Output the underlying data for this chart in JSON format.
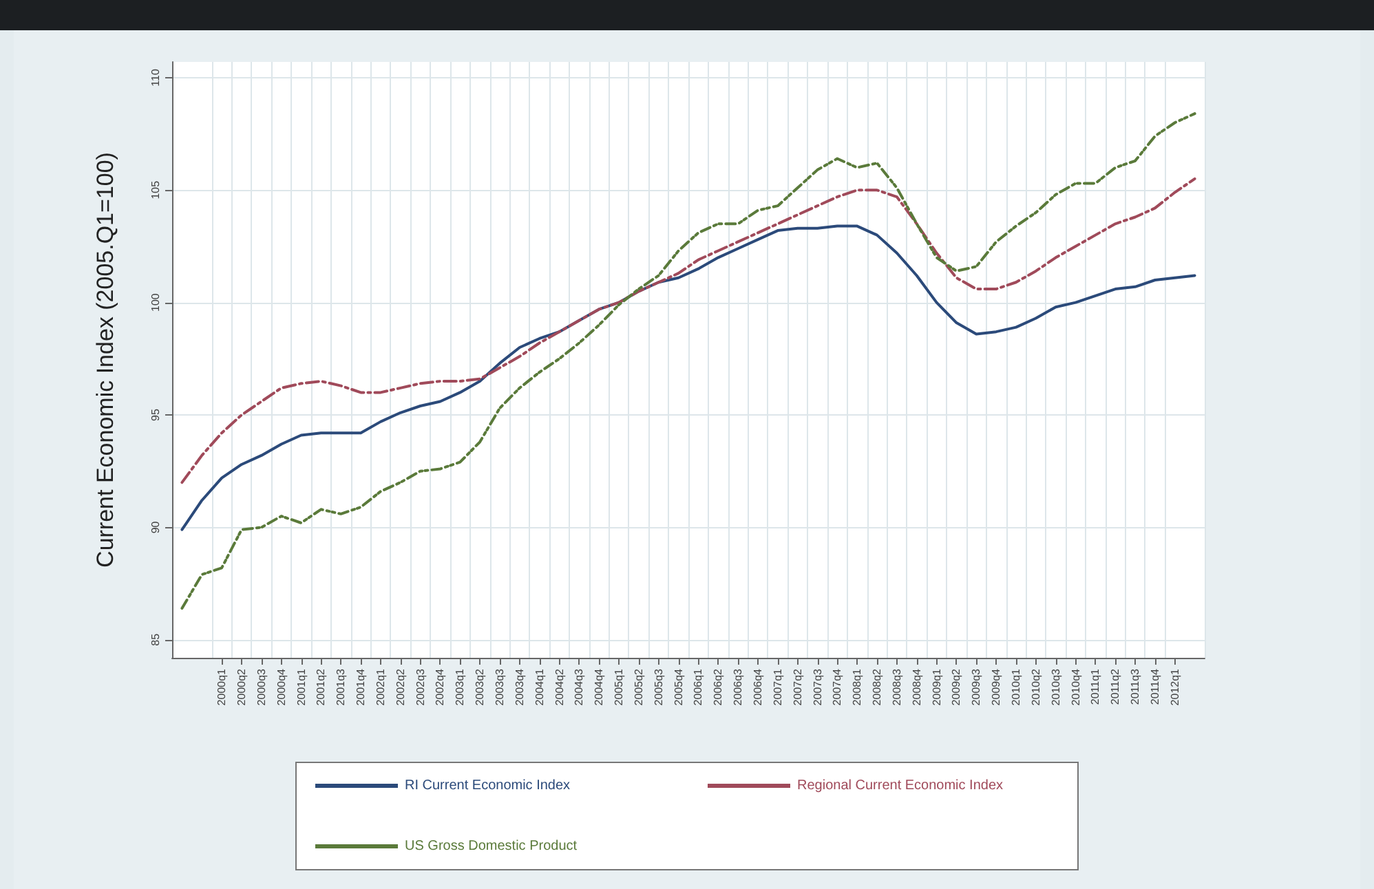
{
  "chart_data": {
    "type": "line",
    "ylabel": "Current Economic Index (2005.Q1=100)",
    "categories": [
      null,
      null,
      "2000q1",
      "2000q2",
      "2000q3",
      "2000q4",
      "2001q1",
      "2001q2",
      "2001q3",
      "2001q4",
      "2002q1",
      "2002q2",
      "2002q3",
      "2002q4",
      "2003q1",
      "2003q2",
      "2003q3",
      "2003q4",
      "2004q1",
      "2004q2",
      "2004q3",
      "2004q4",
      "2005q1",
      "2005q2",
      "2005q3",
      "2005q4",
      "2006q1",
      "2006q2",
      "2006q3",
      "2006q4",
      "2007q1",
      "2007q2",
      "2007q3",
      "2007q4",
      "2008q1",
      "2008q2",
      "2008q3",
      "2008q4",
      "2009q1",
      "2009q2",
      "2009q3",
      "2009q4",
      "2010q1",
      "2010q2",
      "2010q3",
      "2010q4",
      "2011q1",
      "2011q2",
      "2011q3",
      "2011q4",
      "2012q1",
      null
    ],
    "series": [
      {
        "name": "RI Current Economic Index",
        "color": "#2b4a7a",
        "line_style": "solid",
        "values": [
          89.9,
          91.2,
          92.2,
          92.8,
          93.2,
          93.7,
          94.1,
          94.2,
          94.2,
          94.2,
          94.7,
          95.1,
          95.4,
          95.6,
          96.0,
          96.5,
          97.3,
          98.0,
          98.4,
          98.7,
          99.2,
          99.7,
          100.0,
          100.5,
          100.9,
          101.1,
          101.5,
          102.0,
          102.4,
          102.8,
          103.2,
          103.3,
          103.3,
          103.4,
          103.4,
          103.0,
          102.2,
          101.2,
          100.0,
          99.1,
          98.6,
          98.7,
          98.9,
          99.3,
          99.8,
          100.0,
          100.3,
          100.6,
          100.7,
          101.0,
          101.1,
          101.2
        ]
      },
      {
        "name": "Regional Current Economic Index",
        "color": "#a04a5a",
        "line_style": "dashed",
        "values": [
          92.0,
          93.2,
          94.2,
          95.0,
          95.6,
          96.2,
          96.4,
          96.5,
          96.3,
          96.0,
          96.0,
          96.2,
          96.4,
          96.5,
          96.5,
          96.6,
          97.1,
          97.6,
          98.2,
          98.7,
          99.2,
          99.7,
          100.0,
          100.5,
          100.9,
          101.3,
          101.9,
          102.3,
          102.7,
          103.1,
          103.5,
          103.9,
          104.3,
          104.7,
          105.0,
          105.0,
          104.7,
          103.5,
          102.2,
          101.1,
          100.6,
          100.6,
          100.9,
          101.4,
          102.0,
          102.5,
          103.0,
          103.5,
          103.8,
          104.2,
          104.9,
          105.5
        ]
      },
      {
        "name": "US Gross Domestic Product",
        "color": "#5a7a3a",
        "line_style": "dotted",
        "values": [
          86.4,
          87.9,
          88.2,
          89.9,
          90.0,
          90.5,
          90.2,
          90.8,
          90.6,
          90.9,
          91.6,
          92.0,
          92.5,
          92.6,
          92.9,
          93.8,
          95.3,
          96.2,
          96.9,
          97.5,
          98.2,
          99.0,
          99.9,
          100.6,
          101.2,
          102.3,
          103.1,
          103.5,
          103.5,
          104.1,
          104.3,
          105.1,
          105.9,
          106.4,
          106.0,
          106.2,
          105.1,
          103.5,
          102.0,
          101.4,
          101.6,
          102.7,
          103.4,
          104.0,
          104.8,
          105.3,
          105.3,
          106.0,
          106.3,
          107.4,
          108.0,
          108.4
        ]
      }
    ],
    "ylim": [
      84.2,
      110.7
    ],
    "yticks": [
      85,
      90,
      95,
      100,
      105,
      110
    ],
    "grid": true,
    "legend": "bottom",
    "marker": "none"
  }
}
